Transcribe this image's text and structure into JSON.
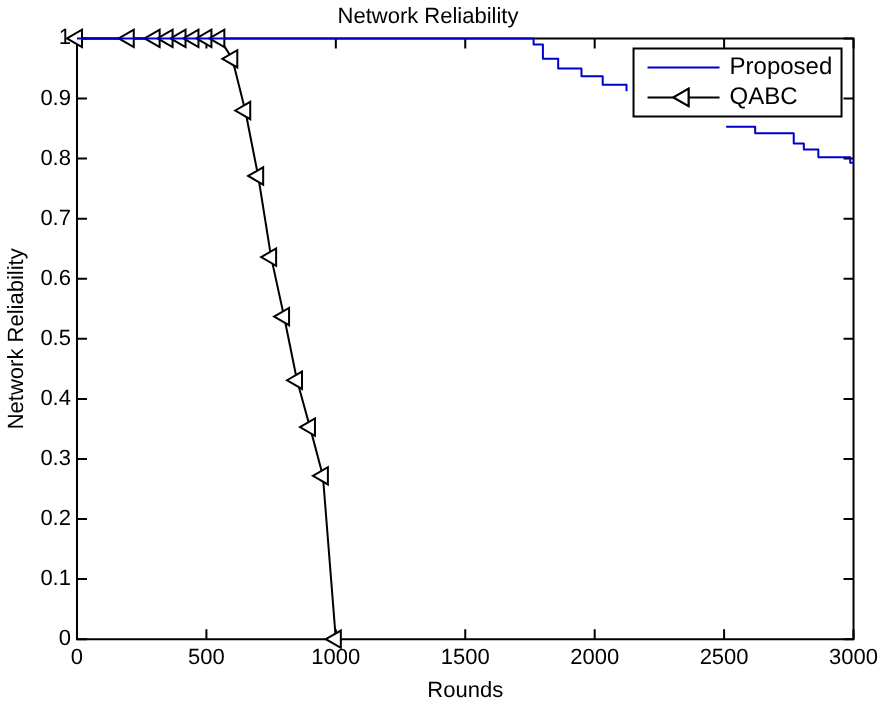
{
  "chart_data": {
    "type": "line",
    "title": "Network Reliability",
    "xlabel": "Rounds",
    "ylabel": "Network Reliability",
    "xlim": [
      0,
      3000
    ],
    "xticks": [
      0,
      500,
      1000,
      1500,
      2000,
      2500,
      3000
    ],
    "ylim": [
      0,
      1
    ],
    "yticks": [
      0,
      0.1,
      0.2,
      0.3,
      0.4,
      0.5,
      0.6,
      0.7,
      0.8,
      0.9,
      1
    ],
    "grid": false,
    "legend": "top right",
    "series": [
      {
        "name": "Proposed",
        "type": "step",
        "color": "#0000cc",
        "marker": "none",
        "x": [
          0,
          1764,
          1800,
          1859,
          1949,
          2031,
          2123,
          2300,
          2508,
          2620,
          2769,
          2808,
          2864,
          2987,
          3000
        ],
        "values": [
          1,
          0.99,
          0.966,
          0.95,
          0.937,
          0.923,
          0.912,
          null,
          0.853,
          0.842,
          0.825,
          0.815,
          0.802,
          0.793,
          0.793
        ]
      },
      {
        "name": "QABC",
        "type": "line",
        "color": "#000000",
        "marker": "triangle",
        "x": [
          0,
          200,
          300,
          350,
          400,
          450,
          500,
          550,
          600,
          650,
          700,
          750,
          800,
          850,
          900,
          950,
          1000
        ],
        "values": [
          1,
          1,
          1,
          1,
          1,
          1,
          1,
          1,
          0.966,
          0.88,
          0.771,
          0.636,
          0.537,
          0.431,
          0.353,
          0.272,
          0
        ]
      }
    ]
  }
}
